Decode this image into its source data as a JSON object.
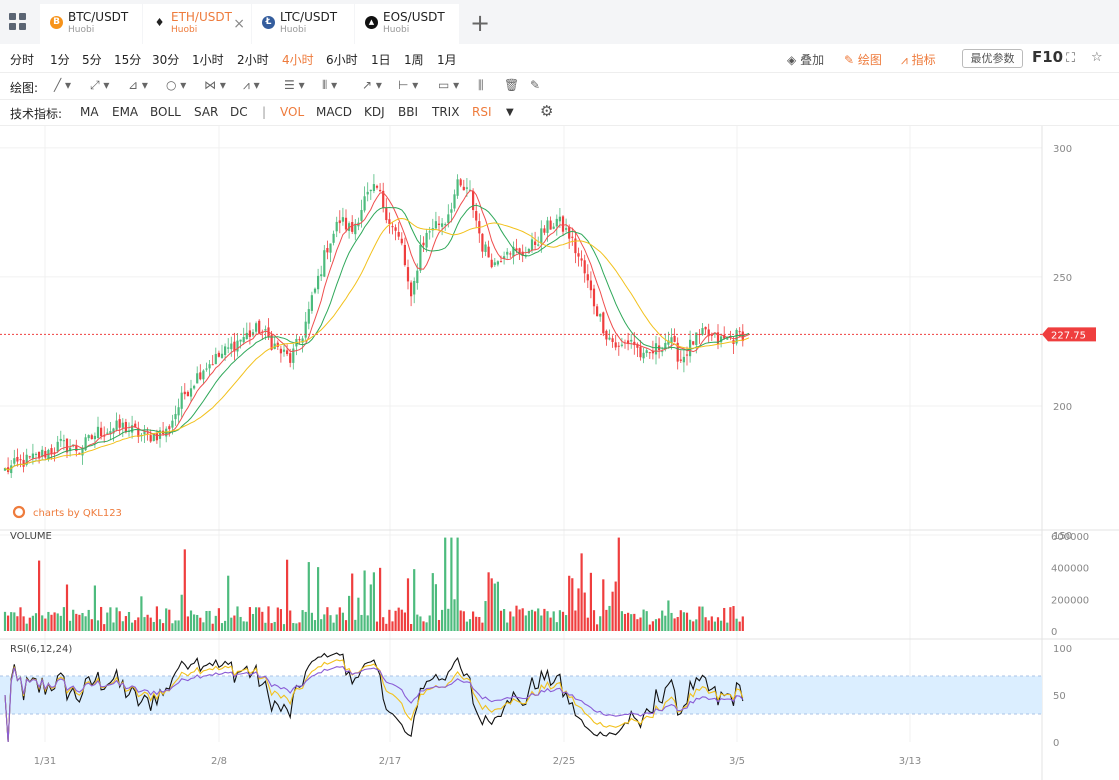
{
  "tabs": [
    {
      "pair": "BTC/USDT",
      "exchange": "Huobi",
      "coin_glyph": "B",
      "coin_color": "#f7931a",
      "active": false
    },
    {
      "pair": "ETH/USDT",
      "exchange": "Huobi",
      "coin_glyph": "♦",
      "coin_color": "#222222",
      "active": true,
      "close": "×"
    },
    {
      "pair": "LTC/USDT",
      "exchange": "Huobi",
      "coin_glyph": "Ł",
      "coin_color": "#345d9d",
      "active": false
    },
    {
      "pair": "EOS/USDT",
      "exchange": "Huobi",
      "coin_glyph": "▲",
      "coin_color": "#111111",
      "active": false
    }
  ],
  "add_tab_icon": "plus-icon",
  "intervals": [
    "分时",
    "1分",
    "5分",
    "15分",
    "30分",
    "1小时",
    "2小时",
    "4小时",
    "6小时",
    "1日",
    "1周",
    "1月"
  ],
  "active_interval": "4小时",
  "toolbar_right": {
    "overlay": "叠加",
    "draw": "绘图",
    "indicator": "指标",
    "best_params": "最优参数",
    "f10": "F10"
  },
  "drawing": {
    "label": "绘图:"
  },
  "indicators": {
    "label": "技术指标:",
    "items": [
      "MA",
      "EMA",
      "BOLL",
      "SAR",
      "DC",
      "|",
      "VOL",
      "MACD",
      "KDJ",
      "BBI",
      "TRIX",
      "RSI"
    ],
    "active": [
      "VOL",
      "RSI"
    ]
  },
  "colors": {
    "up": "#4dbb7d",
    "down": "#ef3e3e",
    "ma1": "#ef4e4e",
    "ma2": "#2fa85a",
    "ma3": "#f2c11c",
    "accent": "#ee7b3c",
    "rsi_band": "#dbeeff"
  },
  "chart_data": {
    "type": "candlestick",
    "x_ticks": [
      "1/31",
      "2/8",
      "2/17",
      "2/25",
      "3/5",
      "3/13"
    ],
    "price_axis": {
      "ticks": [
        150,
        200,
        250,
        300
      ],
      "range": [
        150,
        305
      ],
      "current_price": "227.75"
    },
    "watermark": "charts by QKL123",
    "close_anchors": [
      [
        0,
        175
      ],
      [
        5,
        178
      ],
      [
        10,
        180
      ],
      [
        18,
        185
      ],
      [
        24,
        183
      ],
      [
        30,
        190
      ],
      [
        38,
        192
      ],
      [
        45,
        188
      ],
      [
        52,
        190
      ],
      [
        58,
        205
      ],
      [
        64,
        215
      ],
      [
        70,
        220
      ],
      [
        76,
        226
      ],
      [
        82,
        230
      ],
      [
        88,
        222
      ],
      [
        92,
        218
      ],
      [
        96,
        228
      ],
      [
        100,
        245
      ],
      [
        104,
        262
      ],
      [
        108,
        272
      ],
      [
        112,
        268
      ],
      [
        116,
        280
      ],
      [
        120,
        284
      ],
      [
        124,
        272
      ],
      [
        128,
        262
      ],
      [
        131,
        240
      ],
      [
        134,
        262
      ],
      [
        138,
        270
      ],
      [
        142,
        272
      ],
      [
        146,
        285
      ],
      [
        150,
        282
      ],
      [
        154,
        262
      ],
      [
        158,
        255
      ],
      [
        162,
        262
      ],
      [
        166,
        258
      ],
      [
        170,
        262
      ],
      [
        174,
        268
      ],
      [
        178,
        272
      ],
      [
        182,
        266
      ],
      [
        186,
        255
      ],
      [
        190,
        240
      ],
      [
        194,
        228
      ],
      [
        198,
        222
      ],
      [
        202,
        226
      ],
      [
        206,
        218
      ],
      [
        210,
        222
      ],
      [
        214,
        226
      ],
      [
        218,
        218
      ],
      [
        222,
        225
      ],
      [
        226,
        228
      ],
      [
        230,
        225
      ],
      [
        234,
        226
      ],
      [
        238,
        228
      ]
    ],
    "volume_panel": {
      "label": "VOLUME",
      "ticks": [
        0,
        200000,
        400000,
        600000
      ],
      "max": 600000
    },
    "rsi_panel": {
      "label": "RSI(6,12,24)",
      "ticks": [
        0,
        50,
        100
      ],
      "band": [
        30,
        70
      ],
      "periods": [
        6,
        12,
        24
      ]
    }
  }
}
